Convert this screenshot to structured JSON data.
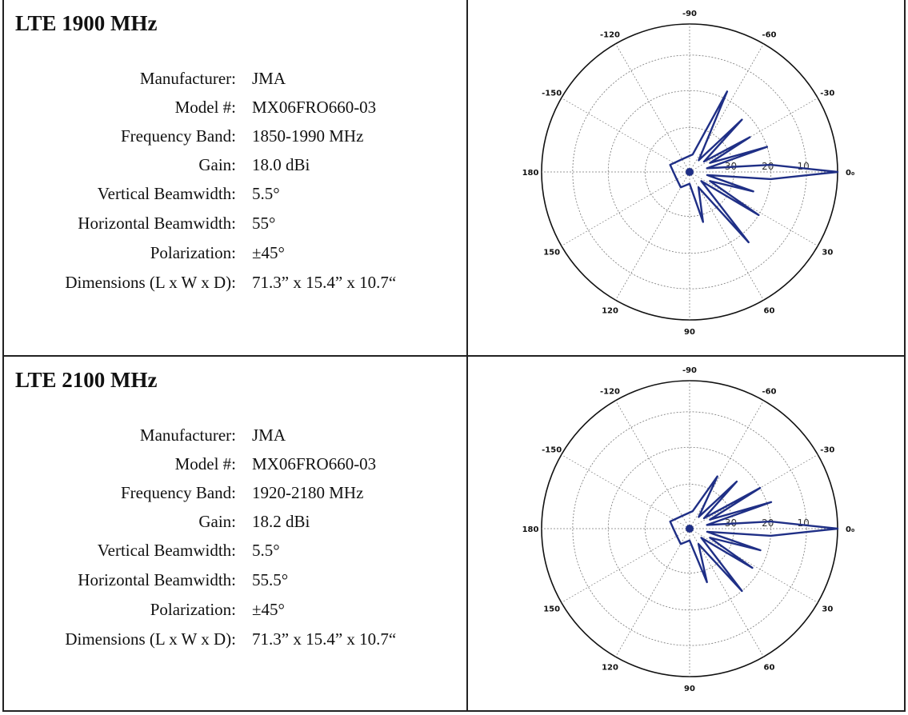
{
  "panels": [
    {
      "title": "LTE 1900 MHz",
      "specs": [
        {
          "label": "Manufacturer:",
          "value": "JMA"
        },
        {
          "label": "Model #:",
          "value": "MX06FRO660-03"
        },
        {
          "label": "Frequency Band:",
          "value": "1850-1990 MHz"
        },
        {
          "label": "Gain:",
          "value": "18.0 dBi"
        },
        {
          "label": "Vertical Beamwidth:",
          "value": "5.5°"
        },
        {
          "label": "Horizontal Beamwidth:",
          "value": "55°"
        },
        {
          "label": "Polarization:",
          "value": "±45°"
        },
        {
          "label": "Dimensions (L x W x D):",
          "value": "71.3” x 15.4” x 10.7“"
        }
      ]
    },
    {
      "title": "LTE 2100 MHz",
      "specs": [
        {
          "label": "Manufacturer:",
          "value": "JMA"
        },
        {
          "label": "Model #:",
          "value": "MX06FRO660-03"
        },
        {
          "label": "Frequency Band:",
          "value": "1920-2180 MHz"
        },
        {
          "label": "Gain:",
          "value": "18.2 dBi"
        },
        {
          "label": "Vertical Beamwidth:",
          "value": "5.5°"
        },
        {
          "label": "Horizontal Beamwidth:",
          "value": "55.5°"
        },
        {
          "label": "Polarization:",
          "value": "±45°"
        },
        {
          "label": "Dimensions (L x W x D):",
          "value": "71.3” x 15.4” x 10.7“"
        }
      ]
    }
  ],
  "chart_data": [
    {
      "type": "polar",
      "angle_labels": [
        "-90",
        "-60",
        "-30",
        "0",
        "30",
        "60",
        "90",
        "120",
        "150",
        "180",
        "-150",
        "-120"
      ],
      "radial_labels": [
        "10",
        "20",
        "30"
      ],
      "grid": true,
      "line_color": "#1f2f86",
      "series": [
        {
          "points": [
            {
              "angle": 0,
              "r": 1.0
            },
            {
              "angle": -5,
              "r": 0.55
            },
            {
              "angle": 5,
              "r": 0.55
            },
            {
              "angle": -12,
              "r": 0.12
            },
            {
              "angle": 10,
              "r": 0.12
            },
            {
              "angle": -18,
              "r": 0.55
            },
            {
              "angle": -24,
              "r": 0.15
            },
            {
              "angle": -30,
              "r": 0.47
            },
            {
              "angle": -36,
              "r": 0.12
            },
            {
              "angle": -45,
              "r": 0.5
            },
            {
              "angle": -52,
              "r": 0.1
            },
            {
              "angle": -65,
              "r": 0.6
            },
            {
              "angle": -80,
              "r": 0.12
            },
            {
              "angle": 17,
              "r": 0.45
            },
            {
              "angle": 24,
              "r": 0.15
            },
            {
              "angle": 32,
              "r": 0.55
            },
            {
              "angle": 38,
              "r": 0.1
            },
            {
              "angle": 50,
              "r": 0.62
            },
            {
              "angle": 60,
              "r": 0.12
            },
            {
              "angle": 75,
              "r": 0.35
            },
            {
              "angle": 90,
              "r": 0.08
            },
            {
              "angle": 120,
              "r": 0.12
            },
            {
              "angle": 160,
              "r": 0.1
            },
            {
              "angle": 200,
              "r": 0.14
            },
            {
              "angle": 240,
              "r": 0.1
            }
          ]
        }
      ]
    },
    {
      "type": "polar",
      "angle_labels": [
        "-90",
        "-60",
        "-30",
        "0",
        "30",
        "60",
        "90",
        "120",
        "150",
        "180",
        "-150",
        "-120"
      ],
      "radial_labels": [
        "10",
        "20",
        "30"
      ],
      "grid": true,
      "line_color": "#1f2f86",
      "series": [
        {
          "points": [
            {
              "angle": 0,
              "r": 1.0
            },
            {
              "angle": -5,
              "r": 0.55
            },
            {
              "angle": 5,
              "r": 0.55
            },
            {
              "angle": -12,
              "r": 0.12
            },
            {
              "angle": 10,
              "r": 0.12
            },
            {
              "angle": -18,
              "r": 0.58
            },
            {
              "angle": -24,
              "r": 0.15
            },
            {
              "angle": -30,
              "r": 0.55
            },
            {
              "angle": -36,
              "r": 0.12
            },
            {
              "angle": -45,
              "r": 0.45
            },
            {
              "angle": -52,
              "r": 0.1
            },
            {
              "angle": -62,
              "r": 0.4
            },
            {
              "angle": -80,
              "r": 0.12
            },
            {
              "angle": 17,
              "r": 0.5
            },
            {
              "angle": 24,
              "r": 0.15
            },
            {
              "angle": 32,
              "r": 0.5
            },
            {
              "angle": 38,
              "r": 0.1
            },
            {
              "angle": 50,
              "r": 0.55
            },
            {
              "angle": 60,
              "r": 0.12
            },
            {
              "angle": 72,
              "r": 0.38
            },
            {
              "angle": 90,
              "r": 0.08
            },
            {
              "angle": 120,
              "r": 0.12
            },
            {
              "angle": 160,
              "r": 0.1
            },
            {
              "angle": 200,
              "r": 0.14
            },
            {
              "angle": 240,
              "r": 0.1
            }
          ]
        }
      ]
    }
  ]
}
